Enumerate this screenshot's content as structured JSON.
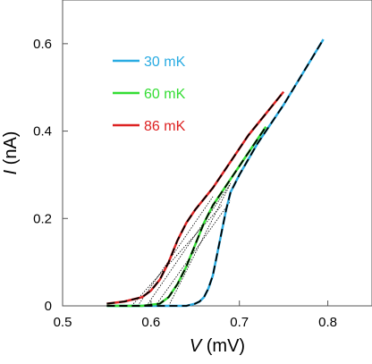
{
  "chart_data": {
    "type": "line",
    "xlabel_var": "V",
    "xlabel_unit": " (mV)",
    "ylabel_var": "I",
    "ylabel_unit": " (nA)",
    "xlim": [
      0.5,
      0.85
    ],
    "ylim": [
      0,
      0.7
    ],
    "x_ticks": [
      "0.5",
      "0.6",
      "0.7",
      "0.8"
    ],
    "x_tick_values": [
      0.5,
      0.6,
      0.7,
      0.8
    ],
    "y_ticks": [
      "0",
      "0.2",
      "0.4",
      "0.6"
    ],
    "y_tick_values": [
      0,
      0.2,
      0.4,
      0.6
    ],
    "legend_position": "upper-left",
    "series": [
      {
        "name": "30 mK",
        "color": "#29abe2",
        "x": [
          0.55,
          0.6,
          0.64,
          0.65,
          0.655,
          0.66,
          0.665,
          0.67,
          0.675,
          0.68,
          0.685,
          0.69,
          0.7,
          0.72,
          0.75,
          0.78,
          0.795
        ],
        "y": [
          0.0,
          0.0,
          0.0,
          0.005,
          0.01,
          0.02,
          0.04,
          0.07,
          0.12,
          0.17,
          0.22,
          0.26,
          0.3,
          0.37,
          0.46,
          0.56,
          0.61
        ]
      },
      {
        "name": "60 mK",
        "color": "#33dd33",
        "x": [
          0.55,
          0.59,
          0.61,
          0.62,
          0.63,
          0.64,
          0.65,
          0.66,
          0.67,
          0.69,
          0.71,
          0.73
        ],
        "y": [
          0.0,
          0.0,
          0.005,
          0.02,
          0.05,
          0.09,
          0.14,
          0.19,
          0.23,
          0.29,
          0.35,
          0.41
        ]
      },
      {
        "name": "86 mK",
        "color": "#dd2222",
        "x": [
          0.55,
          0.57,
          0.59,
          0.6,
          0.61,
          0.62,
          0.63,
          0.64,
          0.65,
          0.67,
          0.69,
          0.71,
          0.73,
          0.75
        ],
        "y": [
          0.005,
          0.01,
          0.02,
          0.035,
          0.06,
          0.1,
          0.15,
          0.19,
          0.22,
          0.27,
          0.33,
          0.39,
          0.44,
          0.49
        ]
      }
    ],
    "fit_curves": [
      {
        "x": [
          0.55,
          0.6,
          0.64,
          0.65,
          0.655,
          0.66,
          0.665,
          0.67,
          0.675,
          0.68,
          0.685,
          0.69,
          0.7,
          0.72,
          0.75,
          0.78,
          0.795
        ],
        "y": [
          0.0,
          0.0,
          0.0,
          0.005,
          0.01,
          0.02,
          0.04,
          0.07,
          0.12,
          0.17,
          0.22,
          0.26,
          0.3,
          0.37,
          0.46,
          0.56,
          0.61
        ]
      },
      {
        "x": [
          0.55,
          0.59,
          0.61,
          0.62,
          0.63,
          0.64,
          0.65,
          0.66,
          0.67,
          0.69,
          0.71,
          0.73
        ],
        "y": [
          0.0,
          0.0,
          0.005,
          0.02,
          0.05,
          0.09,
          0.14,
          0.19,
          0.23,
          0.29,
          0.35,
          0.41
        ]
      },
      {
        "x": [
          0.55,
          0.57,
          0.59,
          0.6,
          0.61,
          0.62,
          0.63,
          0.64,
          0.65,
          0.67,
          0.69,
          0.71,
          0.73,
          0.75
        ],
        "y": [
          0.005,
          0.01,
          0.02,
          0.035,
          0.06,
          0.1,
          0.15,
          0.19,
          0.22,
          0.27,
          0.33,
          0.39,
          0.44,
          0.49
        ]
      }
    ],
    "extrapolation_lines": [
      {
        "x": [
          0.578,
          0.68
        ],
        "y": [
          0.0,
          0.23
        ]
      },
      {
        "x": [
          0.585,
          0.67
        ],
        "y": [
          0.0,
          0.25
        ]
      },
      {
        "x": [
          0.595,
          0.69
        ],
        "y": [
          0.0,
          0.28
        ]
      },
      {
        "x": [
          0.605,
          0.69
        ],
        "y": [
          0.0,
          0.24
        ]
      },
      {
        "x": [
          0.62,
          0.69
        ],
        "y": [
          0.0,
          0.28
        ]
      }
    ]
  }
}
